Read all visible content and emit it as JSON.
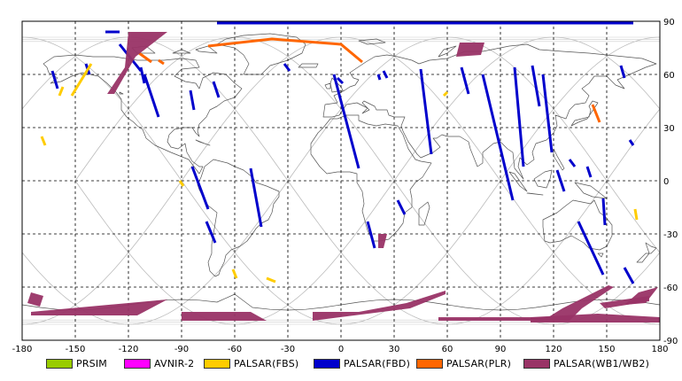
{
  "chart_data": {
    "type": "map",
    "projection": "equirectangular",
    "grid": true,
    "xlim": [
      -180,
      180
    ],
    "ylim": [
      -90,
      90
    ],
    "x_ticks": [
      "-180",
      "-150",
      "-120",
      "-90",
      "-60",
      "-30",
      "0",
      "30",
      "60",
      "90",
      "120",
      "150",
      "180"
    ],
    "y_ticks": [
      "90",
      "60",
      "30",
      "0",
      "-30",
      "-60",
      "-90"
    ],
    "legend_position": "bottom",
    "legend": [
      {
        "label": "PRSIM",
        "color": "#99cc00"
      },
      {
        "label": "AVNIR-2",
        "color": "#ff00ff"
      },
      {
        "label": "PALSAR(FBS)",
        "color": "#ffcc00"
      },
      {
        "label": "PALSAR(FBD)",
        "color": "#0000cc"
      },
      {
        "label": "PALSAR(PLR)",
        "color": "#ff6600"
      },
      {
        "label": "PALSAR(WB1/WB2)",
        "color": "#993366"
      }
    ],
    "series": [
      {
        "name": "PALSAR(FBD)",
        "shape": "strip",
        "color": "#0000cc",
        "strips": [
          [
            [
              -163,
              62
            ],
            [
              -160,
              52
            ]
          ],
          [
            [
              -144,
              66
            ],
            [
              -142,
              60
            ]
          ],
          [
            [
              -125,
              77
            ],
            [
              -113,
              62
            ]
          ],
          [
            [
              -113,
              64
            ],
            [
              -111,
              55
            ]
          ],
          [
            [
              -111,
              60
            ],
            [
              -103,
              36
            ]
          ],
          [
            [
              -85,
              51
            ],
            [
              -83,
              40
            ]
          ],
          [
            [
              -72,
              56
            ],
            [
              -69,
              47
            ]
          ],
          [
            [
              -84,
              8
            ],
            [
              -75,
              -16
            ]
          ],
          [
            [
              -76,
              -23
            ],
            [
              -71,
              -35
            ]
          ],
          [
            [
              -51,
              7
            ],
            [
              -45,
              -26
            ]
          ],
          [
            [
              -32,
              66
            ],
            [
              -29,
              62
            ]
          ],
          [
            [
              -4,
              60
            ],
            [
              10,
              7
            ]
          ],
          [
            [
              -2,
              58
            ],
            [
              1,
              55
            ]
          ],
          [
            [
              21,
              60
            ],
            [
              22,
              57
            ]
          ],
          [
            [
              24,
              62
            ],
            [
              26,
              58
            ]
          ],
          [
            [
              45,
              63
            ],
            [
              51,
              15
            ]
          ],
          [
            [
              32,
              -11
            ],
            [
              36,
              -19
            ]
          ],
          [
            [
              15,
              -23
            ],
            [
              19,
              -38
            ]
          ],
          [
            [
              68,
              64
            ],
            [
              72,
              49
            ]
          ],
          [
            [
              80,
              60
            ],
            [
              97,
              -11
            ]
          ],
          [
            [
              98,
              64
            ],
            [
              103,
              8
            ]
          ],
          [
            [
              108,
              65
            ],
            [
              112,
              42
            ]
          ],
          [
            [
              114,
              60
            ],
            [
              119,
              16
            ]
          ],
          [
            [
              122,
              6
            ],
            [
              126,
              -6
            ]
          ],
          [
            [
              129,
              12
            ],
            [
              132,
              8
            ]
          ],
          [
            [
              134,
              -23
            ],
            [
              148,
              -53
            ]
          ],
          [
            [
              139,
              8
            ],
            [
              141,
              2
            ]
          ],
          [
            [
              148,
              -10
            ],
            [
              149,
              -25
            ]
          ],
          [
            [
              158,
              65
            ],
            [
              160,
              58
            ]
          ],
          [
            [
              160,
              -49
            ],
            [
              165,
              -58
            ]
          ],
          [
            [
              163,
              23
            ],
            [
              165,
              20
            ]
          ],
          [
            [
              -133,
              84
            ],
            [
              -125,
              84
            ]
          ],
          [
            [
              -70,
              89
            ],
            [
              165,
              89
            ]
          ]
        ]
      },
      {
        "name": "PALSAR(FBS)",
        "shape": "strip",
        "color": "#ffcc00",
        "strips": [
          [
            [
              -152,
              48
            ],
            [
              -141,
              66
            ]
          ],
          [
            [
              -159,
              48
            ],
            [
              -157,
              53
            ]
          ],
          [
            [
              -169,
              25
            ],
            [
              -167,
              20
            ]
          ],
          [
            [
              -91,
              0
            ],
            [
              -89,
              -3
            ]
          ],
          [
            [
              -61,
              -50
            ],
            [
              -59,
              -55
            ]
          ],
          [
            [
              -42,
              -55
            ],
            [
              -37,
              -57
            ]
          ],
          [
            [
              58,
              48
            ],
            [
              60,
              50
            ]
          ],
          [
            [
              166,
              -16
            ],
            [
              167,
              -22
            ]
          ]
        ]
      },
      {
        "name": "PALSAR(PLR)",
        "shape": "strip",
        "color": "#ff6600",
        "strips": [
          [
            [
              -114,
              72
            ],
            [
              -107,
              67
            ]
          ],
          [
            [
              -103,
              68
            ],
            [
              -100,
              66
            ]
          ],
          [
            [
              -75,
              76
            ],
            [
              -39,
              80
            ],
            [
              0,
              77
            ],
            [
              12,
              67
            ]
          ],
          [
            [
              142,
              43
            ],
            [
              146,
              33
            ]
          ]
        ]
      },
      {
        "name": "PALSAR(WB1/WB2)",
        "shape": "polygon",
        "color": "#993366",
        "polygons": [
          [
            [
              -122,
              64
            ],
            [
              -120,
              84
            ],
            [
              -98,
              84
            ],
            [
              -116,
              70
            ],
            [
              -128,
              49
            ],
            [
              -132,
              49
            ]
          ],
          [
            [
              67,
              78
            ],
            [
              81,
              78
            ],
            [
              79,
              71
            ],
            [
              65,
              70
            ]
          ],
          [
            [
              21,
              -30
            ],
            [
              26,
              -30
            ],
            [
              24,
              -38
            ],
            [
              21,
              -38
            ]
          ],
          [
            [
              -175,
              -63
            ],
            [
              -168,
              -65
            ],
            [
              -170,
              -71
            ],
            [
              -177,
              -69
            ]
          ],
          [
            [
              -175,
              -76
            ],
            [
              -115,
              -76
            ],
            [
              -98,
              -67
            ],
            [
              -120,
              -69
            ],
            [
              -175,
              -74
            ]
          ],
          [
            [
              -90,
              -74
            ],
            [
              -51,
              -74
            ],
            [
              -42,
              -79
            ],
            [
              -90,
              -79
            ]
          ],
          [
            [
              -16,
              -74
            ],
            [
              10,
              -74
            ],
            [
              37,
              -69
            ],
            [
              59,
              -62
            ],
            [
              59,
              -64
            ],
            [
              39,
              -72
            ],
            [
              -16,
              -79
            ]
          ],
          [
            [
              55,
              -77
            ],
            [
              117,
              -77
            ],
            [
              125,
              -72
            ],
            [
              151,
              -59
            ],
            [
              154,
              -60
            ],
            [
              136,
              -72
            ],
            [
              129,
              -79
            ],
            [
              55,
              -79
            ]
          ],
          [
            [
              146,
              -69
            ],
            [
              174,
              -65
            ],
            [
              174,
              -68
            ],
            [
              149,
              -72
            ]
          ],
          [
            [
              168,
              -63
            ],
            [
              179,
              -60
            ],
            [
              172,
              -69
            ],
            [
              160,
              -70
            ]
          ],
          [
            [
              107,
              -80
            ],
            [
              180,
              -80
            ],
            [
              180,
              -77
            ],
            [
              145,
              -75
            ],
            [
              107,
              -77
            ]
          ]
        ]
      }
    ]
  }
}
